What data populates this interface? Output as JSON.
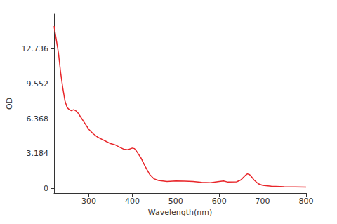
{
  "chart_data": {
    "type": "line",
    "x_label": "Wavelength(nm)",
    "y_label": "OD",
    "x": [
      220,
      225,
      230,
      235,
      240,
      245,
      250,
      255,
      260,
      265,
      270,
      275,
      280,
      290,
      300,
      310,
      320,
      330,
      340,
      350,
      360,
      370,
      380,
      390,
      400,
      405,
      410,
      420,
      430,
      440,
      450,
      460,
      470,
      480,
      500,
      520,
      540,
      560,
      580,
      600,
      610,
      620,
      640,
      650,
      655,
      660,
      665,
      670,
      675,
      680,
      690,
      700,
      720,
      750,
      800
    ],
    "values": [
      14.8,
      13.6,
      12.4,
      10.6,
      9.2,
      8.0,
      7.4,
      7.2,
      7.1,
      7.2,
      7.1,
      6.9,
      6.6,
      6.0,
      5.4,
      5.0,
      4.7,
      4.5,
      4.3,
      4.1,
      4.0,
      3.8,
      3.6,
      3.55,
      3.7,
      3.65,
      3.4,
      2.8,
      2.0,
      1.3,
      0.9,
      0.75,
      0.7,
      0.65,
      0.7,
      0.68,
      0.65,
      0.58,
      0.55,
      0.65,
      0.7,
      0.6,
      0.62,
      0.8,
      1.0,
      1.2,
      1.35,
      1.28,
      1.05,
      0.8,
      0.45,
      0.3,
      0.22,
      0.18,
      0.15
    ],
    "color": "#e8262a",
    "xlim": [
      220,
      800
    ],
    "xticks": [
      300,
      400,
      500,
      600,
      700,
      800
    ],
    "ylim": [
      -0.4,
      15.9
    ],
    "yticks": [
      0,
      3.184,
      6.368,
      9.552,
      12.736
    ],
    "grid": false,
    "line_style": "solid",
    "marker": "none"
  }
}
